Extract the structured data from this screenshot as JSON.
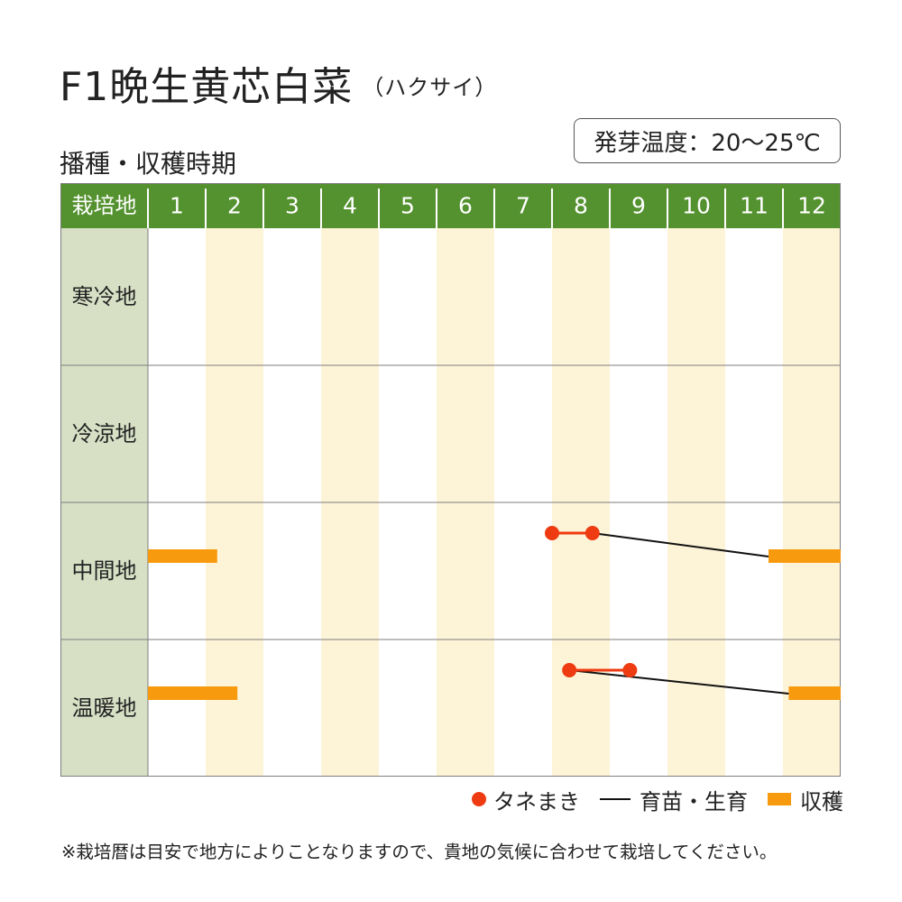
{
  "title": {
    "main": "F1晩生黄芯白菜",
    "sub": "（ハクサイ）"
  },
  "section_label": "播種・収穫時期",
  "germination": "発芽温度：20〜25℃",
  "legend": {
    "sowing": "タネまき",
    "growing": "育苗・生育",
    "harvest": "収穫"
  },
  "note": "※栽培暦は目安で地方によりことなりますので、貴地の気候に合わせて栽培してください。",
  "colors": {
    "header": "#54912f",
    "row_label_bg": "#d7e0c5",
    "alt_column": "#fdf3d7",
    "sowing": "#ee3b11",
    "harvest": "#f79a0e",
    "growing": "#111111"
  },
  "chart_data": {
    "type": "gantt",
    "header_label": "栽培地",
    "months": [
      "1",
      "2",
      "3",
      "4",
      "5",
      "6",
      "7",
      "8",
      "9",
      "10",
      "11",
      "12"
    ],
    "regions": [
      {
        "name": "寒冷地",
        "sowing": null,
        "growing": [],
        "harvest": []
      },
      {
        "name": "冷涼地",
        "sowing": null,
        "growing": [],
        "harvest": []
      },
      {
        "name": "中間地",
        "sowing": [
          8.0,
          8.7
        ],
        "growing": [
          [
            8.7,
            11.75
          ]
        ],
        "harvest": [
          [
            1.0,
            2.2
          ],
          [
            11.75,
            13.0
          ]
        ]
      },
      {
        "name": "温暖地",
        "sowing": [
          8.3,
          9.35
        ],
        "growing": [
          [
            8.3,
            12.1
          ]
        ],
        "harvest": [
          [
            1.0,
            2.55
          ],
          [
            12.1,
            13.0
          ]
        ]
      }
    ]
  }
}
